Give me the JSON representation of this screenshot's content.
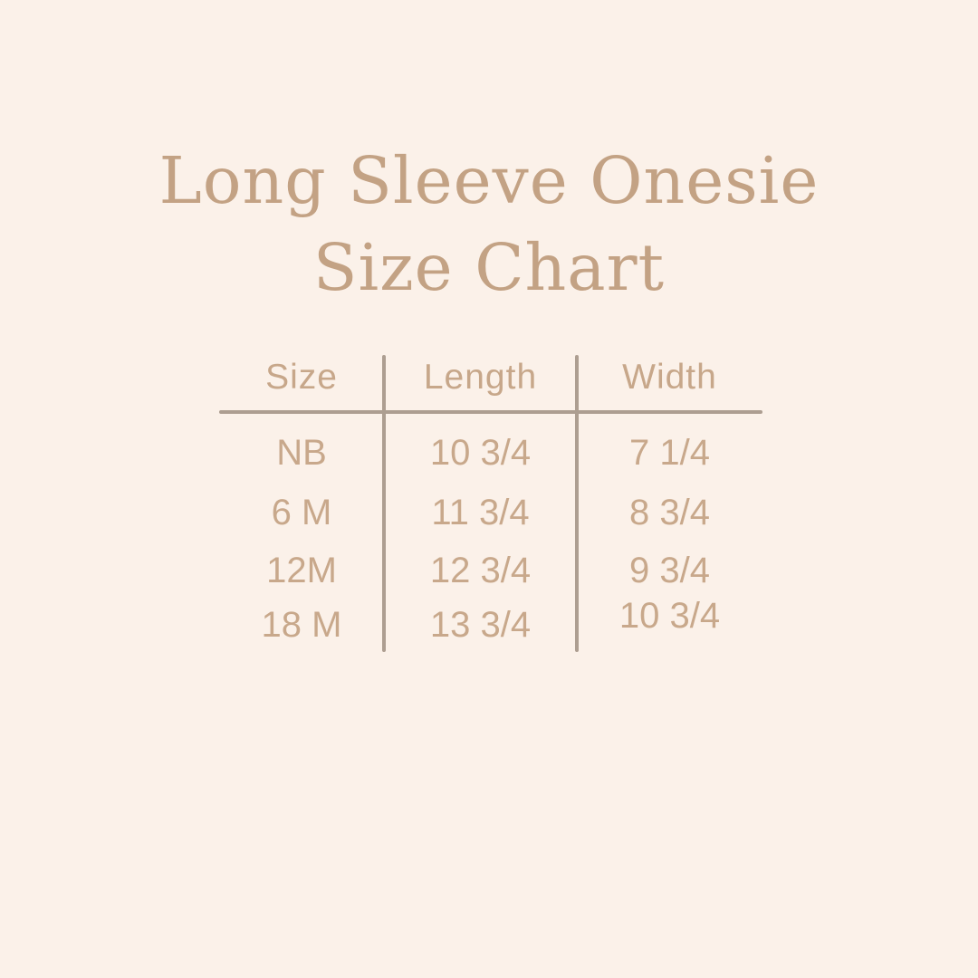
{
  "page": {
    "background_color": "#fbf1e9",
    "title_color": "#c3a284",
    "table_text_color": "#c8a88b",
    "line_color": "#ad9e91"
  },
  "title": {
    "line1": "Long Sleeve Onesie",
    "line2": "Size Chart"
  },
  "chart_data": {
    "type": "table",
    "title": "Long Sleeve Onesie Size Chart",
    "columns": [
      "Size",
      "Length",
      "Width"
    ],
    "rows": [
      [
        "NB",
        "10 3/4",
        "7 1/4"
      ],
      [
        "6 M",
        "11 3/4",
        "8 3/4"
      ],
      [
        "12M",
        "12 3/4",
        "9 3/4"
      ],
      [
        "18 M",
        "13 3/4",
        "10 3/4"
      ]
    ]
  }
}
